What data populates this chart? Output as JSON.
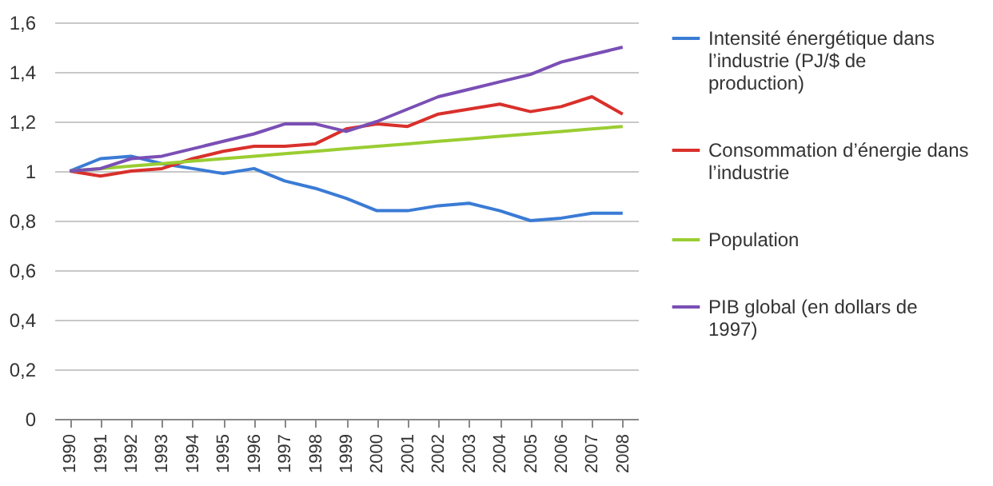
{
  "chart_data": {
    "type": "line",
    "categories": [
      "1990",
      "1991",
      "1992",
      "1993",
      "1994",
      "1995",
      "1996",
      "1997",
      "1998",
      "1999",
      "2000",
      "2001",
      "2002",
      "2003",
      "2004",
      "2005",
      "2006",
      "2007",
      "2008"
    ],
    "series": [
      {
        "name": "Intensité énergétique dans l’industrie (PJ/$ de production)",
        "color": "#3a7bd5",
        "values": [
          1.0,
          1.05,
          1.06,
          1.03,
          1.01,
          0.99,
          1.01,
          0.96,
          0.93,
          0.89,
          0.84,
          0.84,
          0.86,
          0.87,
          0.84,
          0.8,
          0.81,
          0.83,
          0.83
        ]
      },
      {
        "name": "Consommation d’énergie dans l’industrie",
        "color": "#d9302b",
        "values": [
          1.0,
          0.98,
          1.0,
          1.01,
          1.05,
          1.08,
          1.1,
          1.1,
          1.11,
          1.17,
          1.19,
          1.18,
          1.23,
          1.25,
          1.27,
          1.24,
          1.26,
          1.3,
          1.23
        ]
      },
      {
        "name": "Population",
        "color": "#9acd32",
        "values": [
          1.0,
          1.01,
          1.02,
          1.03,
          1.04,
          1.05,
          1.06,
          1.07,
          1.08,
          1.09,
          1.1,
          1.11,
          1.12,
          1.13,
          1.14,
          1.15,
          1.16,
          1.17,
          1.18
        ]
      },
      {
        "name": "PIB global (en dollars de 1997)",
        "color": "#7a4fb5",
        "values": [
          1.0,
          1.01,
          1.05,
          1.06,
          1.09,
          1.12,
          1.15,
          1.19,
          1.19,
          1.16,
          1.2,
          1.25,
          1.3,
          1.33,
          1.36,
          1.39,
          1.44,
          1.47,
          1.5
        ]
      }
    ],
    "ylim": [
      0,
      1.6
    ],
    "yticks": [
      {
        "value": 0,
        "label": "0"
      },
      {
        "value": 0.2,
        "label": "0,2"
      },
      {
        "value": 0.4,
        "label": "0,4"
      },
      {
        "value": 0.6,
        "label": "0,6"
      },
      {
        "value": 0.8,
        "label": "0,8"
      },
      {
        "value": 1,
        "label": "1"
      },
      {
        "value": 1.2,
        "label": "1,2"
      },
      {
        "value": 1.4,
        "label": "1,4"
      },
      {
        "value": 1.6,
        "label": "1,6"
      }
    ],
    "grid": "y",
    "legend": "right",
    "marker": "none",
    "line_style": "solid"
  }
}
